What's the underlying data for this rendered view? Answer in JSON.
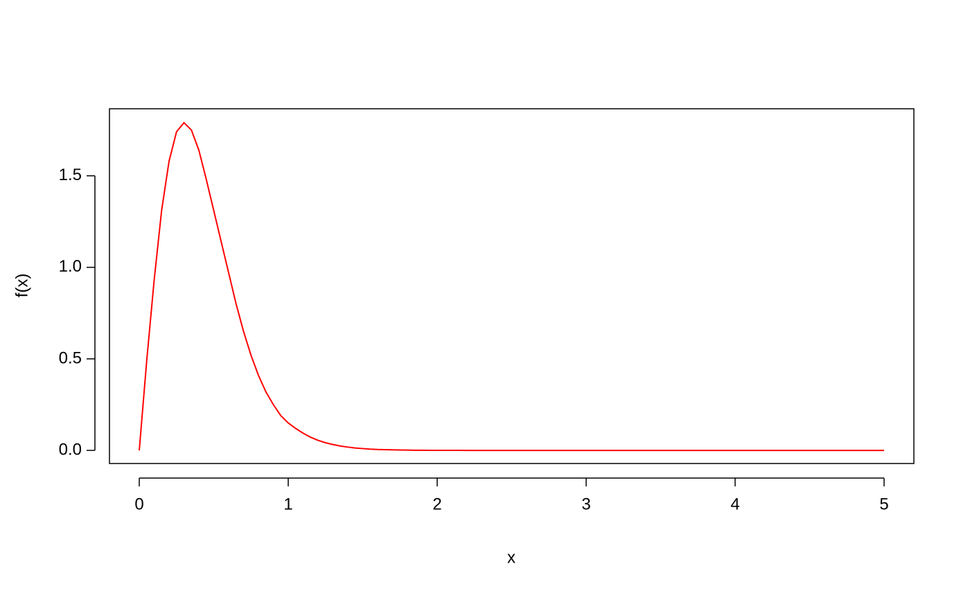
{
  "chart_data": {
    "type": "line",
    "xlabel": "x",
    "ylabel": "f(x)",
    "color": "#ff0000",
    "x": [
      0,
      0.05,
      0.1,
      0.15,
      0.2,
      0.25,
      0.3,
      0.35,
      0.4,
      0.45,
      0.5,
      0.55,
      0.6,
      0.65,
      0.7,
      0.75,
      0.8,
      0.85,
      0.9,
      0.95,
      1,
      1.05,
      1.1,
      1.15,
      1.2,
      1.25,
      1.3,
      1.35,
      1.4,
      1.45,
      1.5,
      1.55,
      1.6,
      1.65,
      1.7,
      1.75,
      1.8,
      1.85,
      1.9,
      1.95,
      2,
      2.05,
      2.1,
      2.15,
      2.2,
      2.25,
      2.3,
      2.35,
      2.4,
      2.45,
      2.5,
      2.55,
      2.6,
      2.65,
      2.7,
      2.75,
      2.8,
      2.85,
      2.9,
      2.95,
      3,
      3.05,
      3.1,
      3.15,
      3.2,
      3.25,
      3.3,
      3.35,
      3.4,
      3.45,
      3.5,
      3.55,
      3.6,
      3.65,
      3.7,
      3.75,
      3.8,
      3.85,
      3.9,
      3.95,
      4,
      4.05,
      4.1,
      4.15,
      4.2,
      4.25,
      4.3,
      4.35,
      4.4,
      4.45,
      4.5,
      4.55,
      4.6,
      4.65,
      4.7,
      4.75,
      4.8,
      4.85,
      4.9,
      4.95,
      5
    ],
    "y": [
      0,
      0.49,
      0.93,
      1.31,
      1.58,
      1.74,
      1.79,
      1.75,
      1.64,
      1.48,
      1.31,
      1.14,
      0.97,
      0.8,
      0.65,
      0.52,
      0.41,
      0.32,
      0.25,
      0.19,
      0.15,
      0.12,
      0.094,
      0.072,
      0.055,
      0.042,
      0.032,
      0.024,
      0.018,
      0.013,
      0.01,
      0.007,
      0.005,
      0.004,
      0.003,
      0.002,
      0.0015,
      0.001,
      0.0007,
      0.0005,
      0.0004,
      0.0003,
      0.0002,
      0.0001,
      0,
      0,
      0,
      0,
      0,
      0,
      0,
      0,
      0,
      0,
      0,
      0,
      0,
      0,
      0,
      0,
      0,
      0,
      0,
      0,
      0,
      0,
      0,
      0,
      0,
      0,
      0,
      0,
      0,
      0,
      0,
      0,
      0,
      0,
      0,
      0,
      0,
      0,
      0,
      0,
      0,
      0,
      0,
      0,
      0,
      0,
      0,
      0,
      0,
      0,
      0,
      0,
      0,
      0,
      0,
      0,
      0
    ],
    "xlim": [
      -0.2,
      5.2
    ],
    "ylim": [
      -0.0716,
      1.866
    ],
    "xticks": [
      0,
      1,
      2,
      3,
      4,
      5
    ],
    "yticks": [
      {
        "value": 0,
        "label": "0.0"
      },
      0.5,
      {
        "value": 1,
        "label": "1.0"
      },
      1.5
    ]
  }
}
